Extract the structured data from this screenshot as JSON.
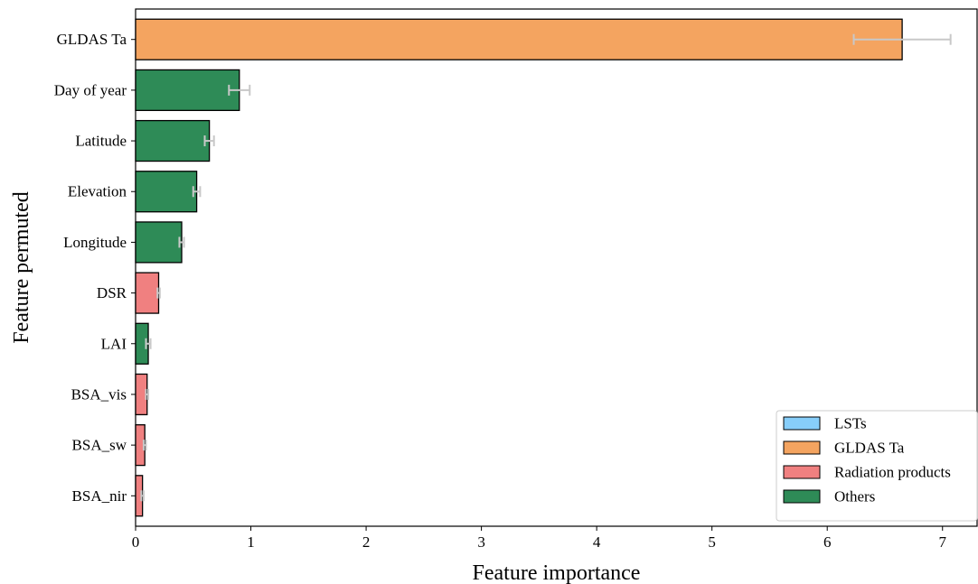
{
  "chart_data": {
    "type": "bar",
    "orientation": "horizontal",
    "categories": [
      "GLDAS Ta",
      "Day of year",
      "Latitude",
      "Elevation",
      "Longitude",
      "DSR",
      "LAI",
      "BSA_vis",
      "BSA_sw",
      "BSA_nir"
    ],
    "values": [
      6.65,
      0.9,
      0.64,
      0.53,
      0.4,
      0.2,
      0.11,
      0.1,
      0.08,
      0.06
    ],
    "errors": [
      0.42,
      0.09,
      0.04,
      0.03,
      0.02,
      0.01,
      0.02,
      0.01,
      0.01,
      0.01
    ],
    "groups": [
      "GLDAS Ta",
      "Others",
      "Others",
      "Others",
      "Others",
      "Radiation products",
      "Others",
      "Radiation products",
      "Radiation products",
      "Radiation products"
    ],
    "xlabel": "Feature importance",
    "ylabel": "Feature permuted",
    "xlim": [
      0,
      7.3
    ],
    "xticks": [
      "0",
      "1",
      "2",
      "3",
      "4",
      "5",
      "6",
      "7"
    ],
    "grid": false,
    "legend": {
      "placement": "lower-right",
      "entries": [
        {
          "label": "LSTs",
          "color": "#87cefa"
        },
        {
          "label": "GLDAS Ta",
          "color": "#f4a460"
        },
        {
          "label": "Radiation products",
          "color": "#f08080"
        },
        {
          "label": "Others",
          "color": "#2e8b57"
        }
      ]
    },
    "colors": {
      "LSTs": "#87cefa",
      "GLDAS Ta": "#f4a460",
      "Radiation products": "#f08080",
      "Others": "#2e8b57",
      "error_bar": "#c8c8c8"
    }
  }
}
